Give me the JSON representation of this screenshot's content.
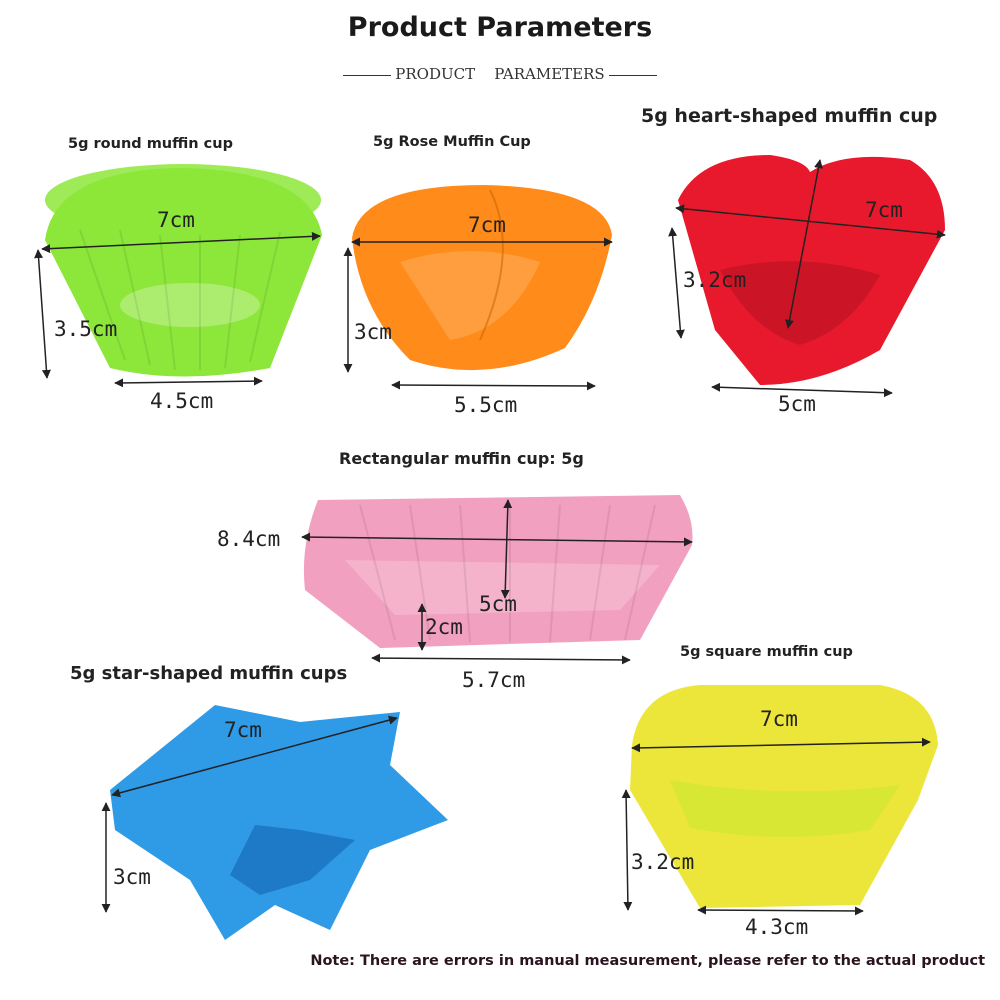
{
  "title": "Product Parameters",
  "subtitle": "PRODUCT    PARAMETERS",
  "colors": {
    "round": "#8de63a",
    "rose": "#ff8c1a",
    "heart": "#e8192c",
    "rect": "#f2a0bf",
    "star": "#2f9ae6",
    "square": "#ece63a"
  },
  "products": {
    "round": {
      "label": "5g round muffin cup",
      "top": "7cm",
      "height": "3.5cm",
      "bottom": "4.5cm"
    },
    "rose": {
      "label": "5g Rose Muffin Cup",
      "top": "7cm",
      "height": "3cm",
      "bottom": "5.5cm"
    },
    "heart": {
      "label": "5g heart-shaped muffin cup",
      "top": "7cm",
      "height": "3.2cm",
      "bottom": "5cm"
    },
    "rect": {
      "label": "Rectangular muffin cup: 5g",
      "length": "8.4cm",
      "width": "5cm",
      "height": "2cm",
      "bottom": "5.7cm"
    },
    "star": {
      "label": "5g star-shaped muffin cups",
      "top": "7cm",
      "height": "3cm"
    },
    "square": {
      "label": "5g square muffin cup",
      "top": "7cm",
      "height": "3.2cm",
      "bottom": "4.3cm"
    }
  },
  "note": "Note: There are errors in manual measurement, please refer to the actual product"
}
